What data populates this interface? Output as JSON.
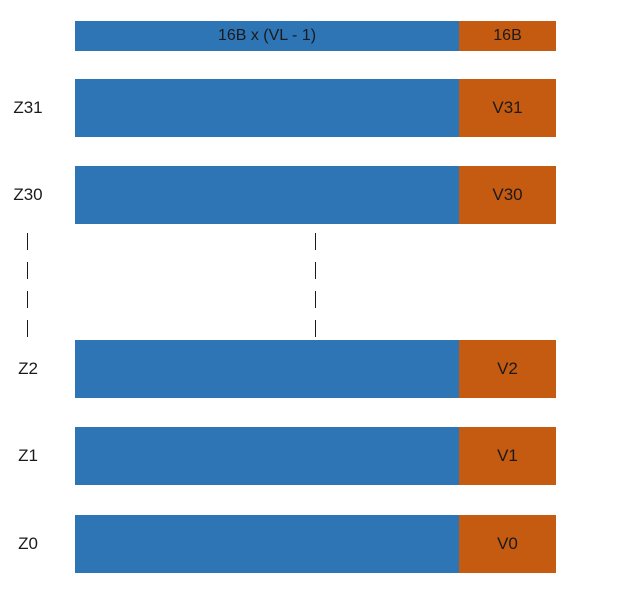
{
  "header": {
    "sve_part_label": "16B x (VL - 1)",
    "neon_part_label": "16B"
  },
  "registers": [
    {
      "z_name": "Z31",
      "v_name": "V31"
    },
    {
      "z_name": "Z30",
      "v_name": "V30"
    },
    {
      "z_name": "Z2",
      "v_name": "V2"
    },
    {
      "z_name": "Z1",
      "v_name": "V1"
    },
    {
      "z_name": "Z0",
      "v_name": "V0"
    }
  ],
  "colors": {
    "sve_extension": "#2E75B6",
    "neon_low_bits": "#C55A11"
  }
}
